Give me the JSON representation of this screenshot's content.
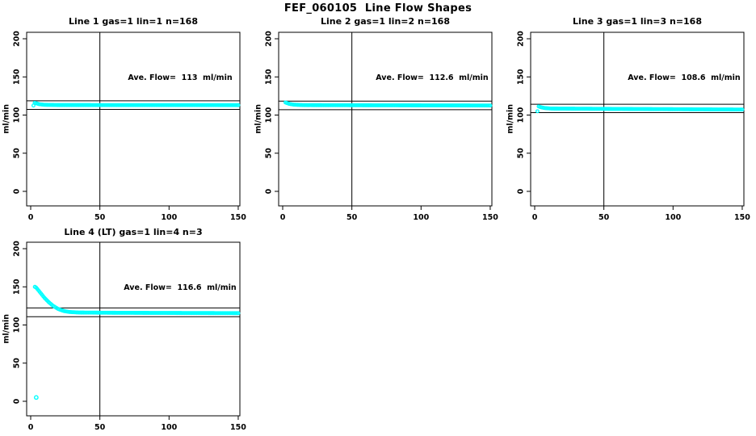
{
  "page": {
    "title": "FEF_060105  Line Flow Shapes"
  },
  "colors": {
    "marker": "#00FFFF",
    "axis": "#000000",
    "background": "#FFFFFF"
  },
  "chart_data": {
    "type": "scatter",
    "title": "FEF_060105  Line Flow Shapes",
    "xlabel": "",
    "ylabel": "ml/min",
    "x_ticks": [
      0,
      50,
      100,
      150
    ],
    "y_ticks": [
      0,
      50,
      100,
      150,
      200
    ],
    "xlim": [
      -3,
      153
    ],
    "ylim": [
      -20,
      209
    ],
    "grid": false,
    "vline_x": 50,
    "marker": {
      "shape": "open-circle",
      "color": "#00FFFF"
    },
    "plots": [
      {
        "title": "Line 1 gas=1 lin=1 n=168",
        "line": 1,
        "gas": 1,
        "lin": 1,
        "n": 168,
        "ave_flow": 113,
        "ave_flow_text": "Ave. Flow=  113  ml/min",
        "hlines": [
          107.4,
          118.7
        ],
        "points_drawn": 168,
        "series_shape": [
          [
            2,
            112.5
          ],
          [
            2.8,
            116
          ],
          [
            4,
            115.5
          ],
          [
            6,
            114.2
          ],
          [
            10,
            113.4
          ],
          [
            20,
            113.1
          ],
          [
            150,
            113
          ]
        ]
      },
      {
        "title": "Line 2 gas=1 lin=2 n=168",
        "line": 2,
        "gas": 1,
        "lin": 2,
        "n": 168,
        "ave_flow": 112.6,
        "ave_flow_text": "Ave. Flow=  112.6  ml/min",
        "hlines": [
          107.0,
          118.2
        ],
        "points_drawn": 168,
        "series_shape": [
          [
            2,
            116.5
          ],
          [
            3,
            115.8
          ],
          [
            5,
            114.5
          ],
          [
            8,
            113.6
          ],
          [
            15,
            113
          ],
          [
            150,
            112.5
          ]
        ]
      },
      {
        "title": "Line 3 gas=1 lin=3 n=168",
        "line": 3,
        "gas": 1,
        "lin": 3,
        "n": 168,
        "ave_flow": 108.6,
        "ave_flow_text": "Ave. Flow=  108.6  ml/min",
        "hlines": [
          103.2,
          114.1
        ],
        "points_drawn": 168,
        "series_shape": [
          [
            2,
            105
          ],
          [
            2.6,
            111.5
          ],
          [
            4,
            110.5
          ],
          [
            7,
            109.2
          ],
          [
            12,
            108.5
          ],
          [
            40,
            108.2
          ],
          [
            150,
            107.2
          ]
        ]
      },
      {
        "title": "Line 4 (LT) gas=1 lin=4 n=3",
        "line": 4,
        "gas": 1,
        "lin": 4,
        "n": 3,
        "ave_flow": 116.6,
        "ave_flow_text": "Ave. Flow=  116.6  ml/min",
        "hlines": [
          110.8,
          122.4
        ],
        "points_drawn": 168,
        "series_shape": [
          [
            3,
            150
          ],
          [
            4,
            149
          ],
          [
            6,
            144.5
          ],
          [
            8,
            140
          ],
          [
            10,
            135.5
          ],
          [
            13,
            130
          ],
          [
            16,
            125.3
          ],
          [
            20,
            120.8
          ],
          [
            24,
            118.3
          ],
          [
            28,
            117
          ],
          [
            35,
            116.3
          ],
          [
            60,
            116
          ],
          [
            150,
            115.5
          ]
        ],
        "extra_points": [
          [
            4,
            5
          ]
        ]
      }
    ]
  }
}
